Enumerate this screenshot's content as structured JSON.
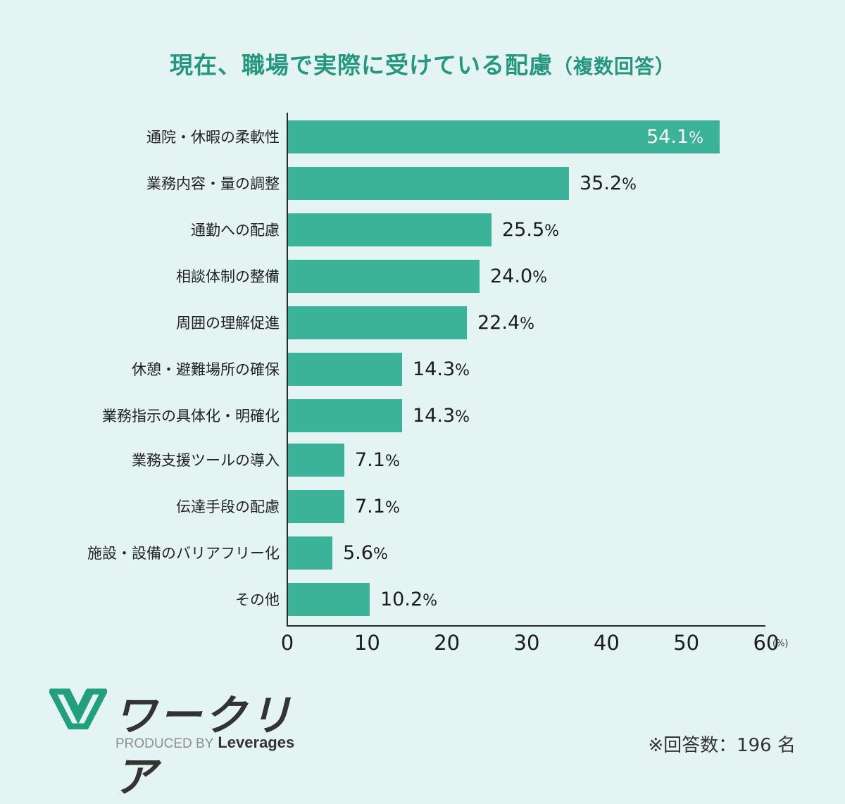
{
  "title": {
    "main": "現在、職場で実際に受けている配慮",
    "sub": "（複数回答）"
  },
  "chart_data": {
    "type": "bar",
    "orientation": "horizontal",
    "title": "現在、職場で実際に受けている配慮（複数回答）",
    "xlabel": "",
    "ylabel": "",
    "unit": "(%)",
    "xlim": [
      0,
      60
    ],
    "xticks": [
      "0",
      "10",
      "20",
      "30",
      "40",
      "50",
      "60"
    ],
    "grid": false,
    "legend": null,
    "bar_color": "#3bb398",
    "categories": [
      "通院・休暇の柔軟性",
      "業務内容・量の調整",
      "通勤への配慮",
      "相談体制の整備",
      "周囲の理解促進",
      "休憩・避難場所の確保",
      "業務指示の具体化・明確化",
      "業務支援ツールの導入",
      "伝達手段の配慮",
      "施設・設備のバリアフリー化",
      "その他"
    ],
    "values": [
      54.1,
      35.2,
      25.5,
      24.0,
      22.4,
      14.3,
      14.3,
      7.1,
      7.1,
      5.6,
      10.2
    ],
    "value_labels": [
      "54.1",
      "35.2",
      "25.5",
      "24.0",
      "22.4",
      "14.3",
      "14.3",
      "7.1",
      "7.1",
      "5.6",
      "10.2"
    ]
  },
  "axis": {
    "pct_symbol": "%",
    "unit_label": "(%)"
  },
  "footer": {
    "logo_text": "ワークリア",
    "produced_by": "PRODUCED BY",
    "brand": "Leverages",
    "respondents": "※回答数：196 名"
  },
  "colors": {
    "accent": "#23987c",
    "bar": "#3bb398",
    "background": "#e3f4f3"
  }
}
